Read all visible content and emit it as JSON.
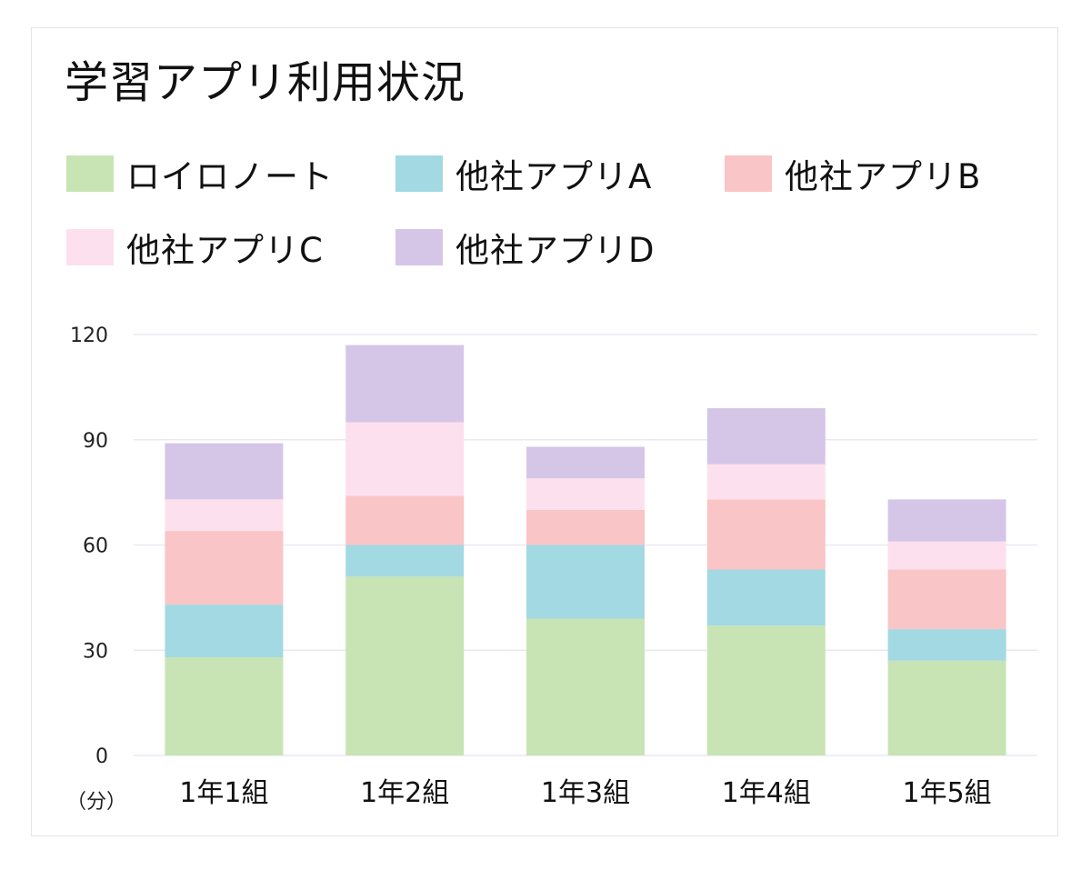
{
  "chart_data": {
    "type": "bar",
    "stacked": true,
    "title": "学習アプリ利用状況",
    "categories": [
      "1年1組",
      "1年2組",
      "1年3組",
      "1年4組",
      "1年5組"
    ],
    "series": [
      {
        "name": "ロイロノート",
        "color": "#c8e4b4",
        "values": [
          28,
          51,
          39,
          37,
          27
        ]
      },
      {
        "name": "他社アプリA",
        "color": "#a3d9e3",
        "values": [
          15,
          9,
          21,
          16,
          9
        ]
      },
      {
        "name": "他社アプリB",
        "color": "#f9c5c6",
        "values": [
          21,
          14,
          10,
          20,
          17
        ]
      },
      {
        "name": "他社アプリC",
        "color": "#fde0ed",
        "values": [
          9,
          21,
          9,
          10,
          8
        ]
      },
      {
        "name": "他社アプリD",
        "color": "#d5c6e8",
        "values": [
          16,
          22,
          9,
          16,
          12
        ]
      }
    ],
    "ylim": [
      0,
      120
    ],
    "yticks": [
      "0",
      "30",
      "60",
      "90",
      "120"
    ],
    "ylabel": "（分）",
    "xlabel": "",
    "legend_position": "top",
    "grid": true
  }
}
